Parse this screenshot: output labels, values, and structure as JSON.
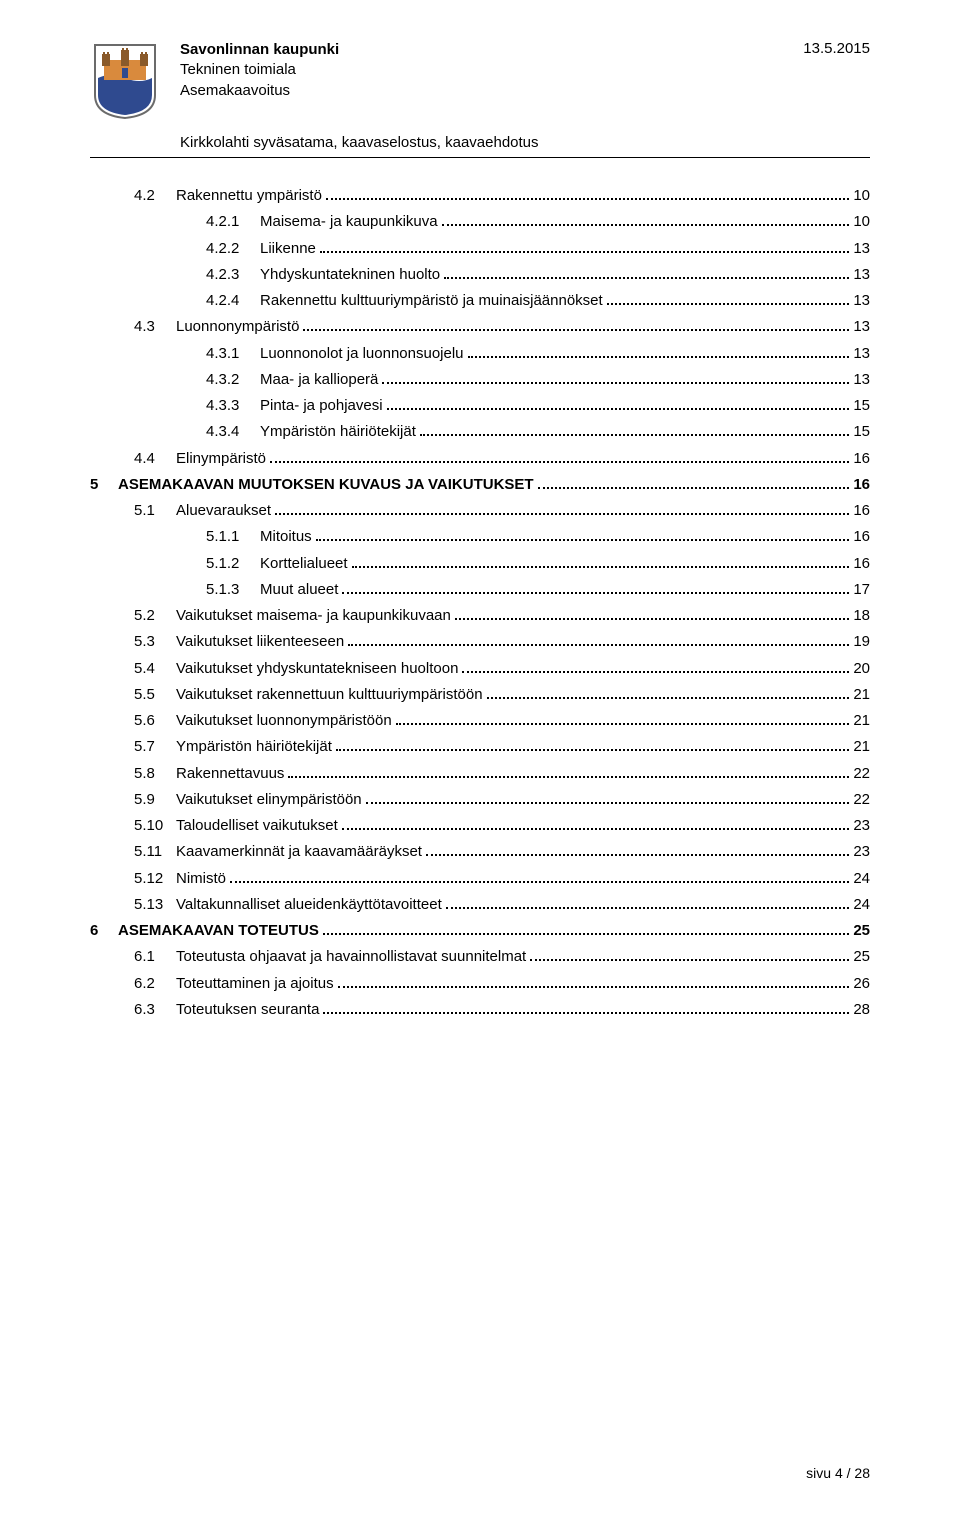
{
  "header": {
    "org": "Savonlinnan kaupunki",
    "dept1": "Tekninen toimiala",
    "dept2": "Asemakaavoitus",
    "subtitle": "Kirkkolahti syväsatama, kaavaselostus, kaavaehdotus",
    "date": "13.5.2015"
  },
  "toc": [
    {
      "lvl": 2,
      "num": "4.2",
      "label": "Rakennettu ympäristö",
      "page": "10"
    },
    {
      "lvl": 3,
      "num": "4.2.1",
      "label": "Maisema- ja kaupunkikuva",
      "page": "10"
    },
    {
      "lvl": 3,
      "num": "4.2.2",
      "label": "Liikenne",
      "page": "13"
    },
    {
      "lvl": 3,
      "num": "4.2.3",
      "label": "Yhdyskuntatekninen huolto",
      "page": "13"
    },
    {
      "lvl": 3,
      "num": "4.2.4",
      "label": "Rakennettu kulttuuriympäristö ja muinaisjäännökset",
      "page": "13"
    },
    {
      "lvl": 2,
      "num": "4.3",
      "label": "Luonnonympäristö",
      "page": "13"
    },
    {
      "lvl": 3,
      "num": "4.3.1",
      "label": "Luonnonolot ja luonnonsuojelu",
      "page": "13"
    },
    {
      "lvl": 3,
      "num": "4.3.2",
      "label": "Maa- ja kallioperä",
      "page": "13"
    },
    {
      "lvl": 3,
      "num": "4.3.3",
      "label": "Pinta- ja pohjavesi",
      "page": "15"
    },
    {
      "lvl": 3,
      "num": "4.3.4",
      "label": "Ympäristön häiriötekijät",
      "page": "15"
    },
    {
      "lvl": 2,
      "num": "4.4",
      "label": "Elinympäristö",
      "page": "16"
    },
    {
      "lvl": 1,
      "num": "5",
      "label": "ASEMAKAAVAN MUUTOKSEN KUVAUS JA VAIKUTUKSET",
      "page": "16",
      "bold": true
    },
    {
      "lvl": 2,
      "num": "5.1",
      "label": "Aluevaraukset",
      "page": "16"
    },
    {
      "lvl": 3,
      "num": "5.1.1",
      "label": "Mitoitus",
      "page": "16"
    },
    {
      "lvl": 3,
      "num": "5.1.2",
      "label": "Korttelialueet",
      "page": "16"
    },
    {
      "lvl": 3,
      "num": "5.1.3",
      "label": "Muut alueet",
      "page": "17"
    },
    {
      "lvl": 2,
      "num": "5.2",
      "label": "Vaikutukset maisema- ja kaupunkikuvaan",
      "page": "18"
    },
    {
      "lvl": 2,
      "num": "5.3",
      "label": "Vaikutukset liikenteeseen",
      "page": "19"
    },
    {
      "lvl": 2,
      "num": "5.4",
      "label": "Vaikutukset yhdyskuntatekniseen huoltoon",
      "page": "20"
    },
    {
      "lvl": 2,
      "num": "5.5",
      "label": "Vaikutukset rakennettuun kulttuuriympäristöön",
      "page": "21"
    },
    {
      "lvl": 2,
      "num": "5.6",
      "label": "Vaikutukset luonnonympäristöön",
      "page": "21"
    },
    {
      "lvl": 2,
      "num": "5.7",
      "label": "Ympäristön häiriötekijät",
      "page": "21"
    },
    {
      "lvl": 2,
      "num": "5.8",
      "label": "Rakennettavuus",
      "page": "22"
    },
    {
      "lvl": 2,
      "num": "5.9",
      "label": "Vaikutukset elinympäristöön",
      "page": "22"
    },
    {
      "lvl": 2,
      "num": "5.10",
      "label": "Taloudelliset vaikutukset",
      "page": "23"
    },
    {
      "lvl": 2,
      "num": "5.11",
      "label": "Kaavamerkinnät ja kaavamääräykset",
      "page": "23"
    },
    {
      "lvl": 2,
      "num": "5.12",
      "label": "Nimistö",
      "page": "24"
    },
    {
      "lvl": 2,
      "num": "5.13",
      "label": "Valtakunnalliset alueidenkäyttötavoitteet",
      "page": "24"
    },
    {
      "lvl": 1,
      "num": "6",
      "label": "ASEMAKAAVAN TOTEUTUS",
      "page": "25",
      "bold": true
    },
    {
      "lvl": 2,
      "num": "6.1",
      "label": "Toteutusta ohjaavat ja havainnollistavat suunnitelmat",
      "page": "25"
    },
    {
      "lvl": 2,
      "num": "6.2",
      "label": "Toteuttaminen ja ajoitus",
      "page": "26"
    },
    {
      "lvl": 2,
      "num": "6.3",
      "label": "Toteutuksen seuranta",
      "page": "28"
    }
  ],
  "footer": "sivu 4 / 28",
  "colors": {
    "text": "#000000",
    "background": "#ffffff",
    "logo_blue": "#2f4a8f",
    "logo_orange": "#d98a3d",
    "logo_brown": "#8a5a2a",
    "logo_outline": "#6b6b6b"
  }
}
